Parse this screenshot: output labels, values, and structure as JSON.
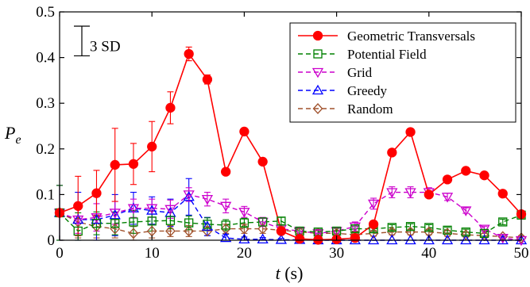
{
  "chart_data": {
    "type": "line",
    "title": "",
    "xlabel": {
      "var": "t",
      "unit": " (s)"
    },
    "ylabel": {
      "var": "P",
      "sub": "e"
    },
    "xlim": [
      0,
      50
    ],
    "ylim": [
      0,
      0.5
    ],
    "xticks": [
      0,
      10,
      20,
      30,
      40,
      50
    ],
    "yticks": [
      0,
      0.1,
      0.2,
      0.3,
      0.4,
      0.5
    ],
    "xtick_labels": [
      "0",
      "10",
      "20",
      "30",
      "40",
      "50"
    ],
    "ytick_labels": [
      "0",
      "0.1",
      "0.2",
      "0.3",
      "0.4",
      "0.5"
    ],
    "grid": false,
    "legend_position": "top-right",
    "scale_bar": {
      "label": "3 SD",
      "length": 0.065
    },
    "x": [
      0,
      2,
      4,
      6,
      8,
      10,
      12,
      14,
      16,
      18,
      20,
      22,
      24,
      26,
      28,
      30,
      32,
      34,
      36,
      38,
      40,
      42,
      44,
      46,
      48,
      50
    ],
    "series": [
      {
        "name": "Geometric Transversals",
        "color": "#ff0000",
        "marker": "circle",
        "dash": "solid",
        "values": [
          0.06,
          0.075,
          0.103,
          0.165,
          0.167,
          0.205,
          0.29,
          0.408,
          0.352,
          0.15,
          0.238,
          0.172,
          0.02,
          0.003,
          0.001,
          0.002,
          0.005,
          0.035,
          0.192,
          0.237,
          0.1,
          0.133,
          0.152,
          0.142,
          0.102,
          0.057
        ],
        "errors": [
          0.0,
          0.065,
          0.05,
          0.08,
          0.045,
          0.055,
          0.035,
          0.015,
          0.01,
          0.005,
          0.005,
          0.004,
          0.002,
          0.002,
          0.001,
          0.001,
          0.002,
          0.004,
          0.004,
          0.004,
          0.004,
          0.004,
          0.004,
          0.004,
          0.004,
          0.004
        ]
      },
      {
        "name": "Potential Field",
        "color": "#008000",
        "marker": "square",
        "dash": "dashed",
        "values": [
          0.06,
          0.02,
          0.037,
          0.037,
          0.04,
          0.042,
          0.043,
          0.038,
          0.035,
          0.033,
          0.038,
          0.04,
          0.042,
          0.02,
          0.018,
          0.02,
          0.025,
          0.025,
          0.028,
          0.03,
          0.028,
          0.022,
          0.018,
          0.015,
          0.04,
          0.055
        ],
        "errors": [
          0.06,
          0.04,
          0.025,
          0.025,
          0.025,
          0.022,
          0.018,
          0.015,
          0.014,
          0.012,
          0.01,
          0.009,
          0.008,
          0.006,
          0.006,
          0.006,
          0.006,
          0.006,
          0.006,
          0.006,
          0.006,
          0.006,
          0.006,
          0.006,
          0.006,
          0.006
        ]
      },
      {
        "name": "Grid",
        "color": "#cc00cc",
        "marker": "triangle-down",
        "dash": "dashed",
        "values": [
          0.06,
          0.045,
          0.05,
          0.06,
          0.07,
          0.07,
          0.068,
          0.1,
          0.09,
          0.075,
          0.062,
          0.04,
          0.025,
          0.02,
          0.015,
          0.02,
          0.03,
          0.08,
          0.105,
          0.105,
          0.105,
          0.095,
          0.065,
          0.025,
          0.005,
          0.0
        ],
        "errors": [
          0.06,
          0.03,
          0.03,
          0.025,
          0.02,
          0.02,
          0.02,
          0.015,
          0.015,
          0.015,
          0.012,
          0.01,
          0.008,
          0.006,
          0.006,
          0.006,
          0.01,
          0.012,
          0.012,
          0.012,
          0.01,
          0.008,
          0.006,
          0.005,
          0.005,
          0.0
        ]
      },
      {
        "name": "Greedy",
        "color": "#0000ff",
        "marker": "triangle-up",
        "dash": "dashed",
        "values": [
          0.06,
          0.045,
          0.045,
          0.055,
          0.07,
          0.065,
          0.06,
          0.095,
          0.03,
          0.005,
          0.002,
          0.002,
          0.001,
          0.001,
          0.0,
          0.0,
          0.0,
          0.0,
          0.0,
          0.0,
          0.0,
          0.0,
          0.0,
          0.0,
          0.0,
          0.0
        ],
        "errors": [
          0.06,
          0.06,
          0.05,
          0.045,
          0.035,
          0.03,
          0.03,
          0.04,
          0.02,
          0.008,
          0.005,
          0.004,
          0.003,
          0.002,
          0.0,
          0.0,
          0.0,
          0.0,
          0.0,
          0.0,
          0.0,
          0.0,
          0.0,
          0.0,
          0.0,
          0.0
        ]
      },
      {
        "name": "Random",
        "color": "#a0522d",
        "marker": "diamond",
        "dash": "dashed",
        "values": [
          0.06,
          0.04,
          0.03,
          0.025,
          0.015,
          0.02,
          0.02,
          0.02,
          0.02,
          0.025,
          0.025,
          0.025,
          0.022,
          0.018,
          0.015,
          0.015,
          0.012,
          0.015,
          0.018,
          0.018,
          0.018,
          0.015,
          0.012,
          0.01,
          0.008,
          0.005
        ],
        "errors": [
          0.06,
          0.035,
          0.025,
          0.02,
          0.015,
          0.015,
          0.012,
          0.012,
          0.01,
          0.01,
          0.01,
          0.01,
          0.008,
          0.008,
          0.006,
          0.006,
          0.006,
          0.006,
          0.006,
          0.006,
          0.006,
          0.006,
          0.005,
          0.005,
          0.005,
          0.005
        ]
      }
    ]
  }
}
